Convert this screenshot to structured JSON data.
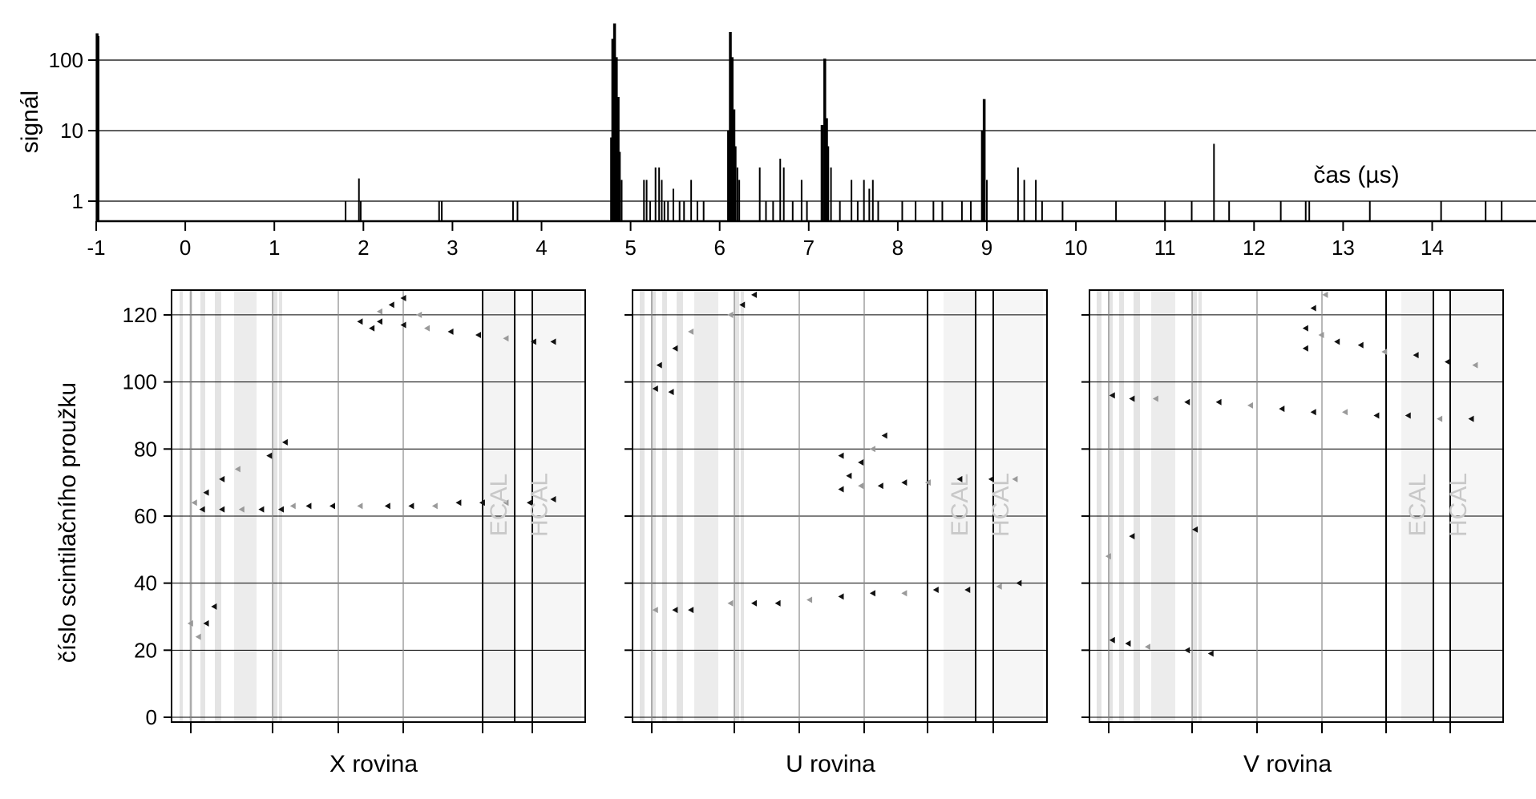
{
  "figure": {
    "signal_ylabel": "signál",
    "time_label": "čas (µs)",
    "strip_ylabel": "číslo scintilačního proužku",
    "plane_titles": [
      "X rovina",
      "U rovina",
      "V rovina"
    ],
    "ecal_label": "ECAL",
    "hcal_label": "HCAL"
  },
  "chart_data": [
    {
      "type": "bar",
      "panel": "signal-vs-time",
      "ylabel": "signál",
      "xlabel": "čas (µs)",
      "x_ticks": [
        "-1",
        "0",
        "1",
        "2",
        "3",
        "4",
        "5",
        "6",
        "7",
        "8",
        "9",
        "10",
        "11",
        "12",
        "13",
        "14"
      ],
      "y_ticks": [
        "1",
        "10",
        "100"
      ],
      "yscale": "log",
      "xlim": [
        -1,
        15
      ],
      "ylim": [
        0.5,
        330
      ],
      "grid": "horizontal",
      "peaks": [
        {
          "t": -0.99,
          "v": 240
        },
        {
          "t": -0.98,
          "v": 220
        },
        {
          "t": 1.8,
          "v": 1
        },
        {
          "t": 1.95,
          "v": 2.1
        },
        {
          "t": 1.97,
          "v": 1
        },
        {
          "t": 2.85,
          "v": 1
        },
        {
          "t": 2.88,
          "v": 1
        },
        {
          "t": 3.68,
          "v": 1
        },
        {
          "t": 3.73,
          "v": 1
        },
        {
          "t": 4.78,
          "v": 8
        },
        {
          "t": 4.8,
          "v": 200
        },
        {
          "t": 4.82,
          "v": 330
        },
        {
          "t": 4.84,
          "v": 110
        },
        {
          "t": 4.86,
          "v": 30
        },
        {
          "t": 4.88,
          "v": 5
        },
        {
          "t": 4.9,
          "v": 2
        },
        {
          "t": 5.15,
          "v": 2
        },
        {
          "t": 5.18,
          "v": 2
        },
        {
          "t": 5.22,
          "v": 1
        },
        {
          "t": 5.28,
          "v": 3
        },
        {
          "t": 5.32,
          "v": 3
        },
        {
          "t": 5.35,
          "v": 2
        },
        {
          "t": 5.38,
          "v": 1
        },
        {
          "t": 5.42,
          "v": 1
        },
        {
          "t": 5.48,
          "v": 1.5
        },
        {
          "t": 5.55,
          "v": 1
        },
        {
          "t": 5.6,
          "v": 1
        },
        {
          "t": 5.68,
          "v": 2
        },
        {
          "t": 5.75,
          "v": 1
        },
        {
          "t": 5.82,
          "v": 1
        },
        {
          "t": 6.1,
          "v": 10
        },
        {
          "t": 6.12,
          "v": 250
        },
        {
          "t": 6.14,
          "v": 110
        },
        {
          "t": 6.16,
          "v": 20
        },
        {
          "t": 6.18,
          "v": 6
        },
        {
          "t": 6.2,
          "v": 3
        },
        {
          "t": 6.22,
          "v": 2
        },
        {
          "t": 6.45,
          "v": 3
        },
        {
          "t": 6.52,
          "v": 1
        },
        {
          "t": 6.6,
          "v": 1
        },
        {
          "t": 6.68,
          "v": 4
        },
        {
          "t": 6.72,
          "v": 3
        },
        {
          "t": 6.82,
          "v": 1
        },
        {
          "t": 6.92,
          "v": 2
        },
        {
          "t": 6.98,
          "v": 1
        },
        {
          "t": 7.15,
          "v": 12
        },
        {
          "t": 7.18,
          "v": 105
        },
        {
          "t": 7.2,
          "v": 15
        },
        {
          "t": 7.22,
          "v": 6
        },
        {
          "t": 7.25,
          "v": 3
        },
        {
          "t": 7.35,
          "v": 1
        },
        {
          "t": 7.48,
          "v": 2
        },
        {
          "t": 7.55,
          "v": 1
        },
        {
          "t": 7.62,
          "v": 2
        },
        {
          "t": 7.68,
          "v": 1.5
        },
        {
          "t": 7.72,
          "v": 2
        },
        {
          "t": 7.78,
          "v": 1
        },
        {
          "t": 8.05,
          "v": 1
        },
        {
          "t": 8.2,
          "v": 1
        },
        {
          "t": 8.4,
          "v": 1
        },
        {
          "t": 8.5,
          "v": 1
        },
        {
          "t": 8.72,
          "v": 1
        },
        {
          "t": 8.82,
          "v": 1
        },
        {
          "t": 8.95,
          "v": 10
        },
        {
          "t": 8.97,
          "v": 28
        },
        {
          "t": 9.0,
          "v": 2
        },
        {
          "t": 9.35,
          "v": 3
        },
        {
          "t": 9.42,
          "v": 2
        },
        {
          "t": 9.55,
          "v": 2
        },
        {
          "t": 9.62,
          "v": 1
        },
        {
          "t": 9.85,
          "v": 1
        },
        {
          "t": 10.45,
          "v": 1
        },
        {
          "t": 11.0,
          "v": 1
        },
        {
          "t": 11.3,
          "v": 1
        },
        {
          "t": 11.55,
          "v": 6.5
        },
        {
          "t": 11.72,
          "v": 1
        },
        {
          "t": 12.3,
          "v": 1
        },
        {
          "t": 12.58,
          "v": 1
        },
        {
          "t": 12.62,
          "v": 1
        },
        {
          "t": 13.3,
          "v": 1
        },
        {
          "t": 14.1,
          "v": 1
        },
        {
          "t": 14.6,
          "v": 1
        },
        {
          "t": 14.78,
          "v": 1
        }
      ]
    },
    {
      "type": "heatmap",
      "panel": "X rovina",
      "ylabel": "číslo scintilačního proužku",
      "y_ticks": [
        "0",
        "20",
        "40",
        "60",
        "80",
        "100",
        "120"
      ],
      "ylim": [
        0,
        127
      ],
      "xlim": [
        0,
        100
      ],
      "regions": [
        "ECAL",
        "HCAL"
      ],
      "hits": [
        [
          5,
          62
        ],
        [
          10,
          62
        ],
        [
          15,
          62
        ],
        [
          20,
          62
        ],
        [
          25,
          62
        ],
        [
          28,
          63
        ],
        [
          32,
          63
        ],
        [
          38,
          63
        ],
        [
          45,
          63
        ],
        [
          52,
          63
        ],
        [
          58,
          63
        ],
        [
          64,
          63
        ],
        [
          70,
          64
        ],
        [
          76,
          64
        ],
        [
          82,
          64
        ],
        [
          88,
          64
        ],
        [
          94,
          65
        ],
        [
          3,
          64
        ],
        [
          6,
          67
        ],
        [
          10,
          71
        ],
        [
          14,
          74
        ],
        [
          22,
          78
        ],
        [
          26,
          82
        ],
        [
          4,
          24
        ],
        [
          6,
          28
        ],
        [
          8,
          33
        ],
        [
          2,
          28
        ],
        [
          50,
          118
        ],
        [
          56,
          117
        ],
        [
          62,
          116
        ],
        [
          68,
          115
        ],
        [
          75,
          114
        ],
        [
          82,
          113
        ],
        [
          89,
          112
        ],
        [
          94,
          112
        ],
        [
          50,
          121
        ],
        [
          53,
          123
        ],
        [
          56,
          125
        ],
        [
          60,
          120
        ],
        [
          45,
          118
        ],
        [
          48,
          116
        ]
      ]
    },
    {
      "type": "heatmap",
      "panel": "U rovina",
      "y_ticks": [
        "0",
        "20",
        "40",
        "60",
        "80",
        "100",
        "120"
      ],
      "ylim": [
        0,
        127
      ],
      "xlim": [
        0,
        100
      ],
      "regions": [
        "ECAL",
        "HCAL"
      ],
      "hits": [
        [
          4,
          105
        ],
        [
          8,
          110
        ],
        [
          12,
          115
        ],
        [
          3,
          98
        ],
        [
          7,
          97
        ],
        [
          22,
          120
        ],
        [
          25,
          123
        ],
        [
          28,
          126
        ],
        [
          3,
          32
        ],
        [
          8,
          32
        ],
        [
          12,
          32
        ],
        [
          22,
          34
        ],
        [
          28,
          34
        ],
        [
          34,
          34
        ],
        [
          42,
          35
        ],
        [
          50,
          36
        ],
        [
          58,
          37
        ],
        [
          66,
          37
        ],
        [
          74,
          38
        ],
        [
          82,
          38
        ],
        [
          90,
          39
        ],
        [
          95,
          40
        ],
        [
          50,
          68
        ],
        [
          55,
          69
        ],
        [
          60,
          69
        ],
        [
          66,
          70
        ],
        [
          72,
          70
        ],
        [
          80,
          71
        ],
        [
          88,
          71
        ],
        [
          94,
          71
        ],
        [
          52,
          72
        ],
        [
          55,
          76
        ],
        [
          58,
          80
        ],
        [
          61,
          84
        ],
        [
          50,
          78
        ]
      ]
    },
    {
      "type": "heatmap",
      "panel": "V rovina",
      "y_ticks": [
        "0",
        "20",
        "40",
        "60",
        "80",
        "100",
        "120"
      ],
      "ylim": [
        0,
        127
      ],
      "xlim": [
        0,
        100
      ],
      "regions": [
        "ECAL",
        "HCAL"
      ],
      "hits": [
        [
          3,
          96
        ],
        [
          8,
          95
        ],
        [
          14,
          95
        ],
        [
          22,
          94
        ],
        [
          30,
          94
        ],
        [
          38,
          93
        ],
        [
          46,
          92
        ],
        [
          54,
          91
        ],
        [
          62,
          91
        ],
        [
          70,
          90
        ],
        [
          78,
          90
        ],
        [
          86,
          89
        ],
        [
          94,
          89
        ],
        [
          52,
          116
        ],
        [
          56,
          114
        ],
        [
          60,
          112
        ],
        [
          66,
          111
        ],
        [
          72,
          109
        ],
        [
          80,
          108
        ],
        [
          88,
          106
        ],
        [
          95,
          105
        ],
        [
          52,
          110
        ],
        [
          54,
          122
        ],
        [
          57,
          126
        ],
        [
          3,
          23
        ],
        [
          7,
          22
        ],
        [
          12,
          21
        ],
        [
          22,
          20
        ],
        [
          28,
          19
        ],
        [
          2,
          48
        ],
        [
          8,
          54
        ],
        [
          24,
          56
        ]
      ]
    }
  ]
}
